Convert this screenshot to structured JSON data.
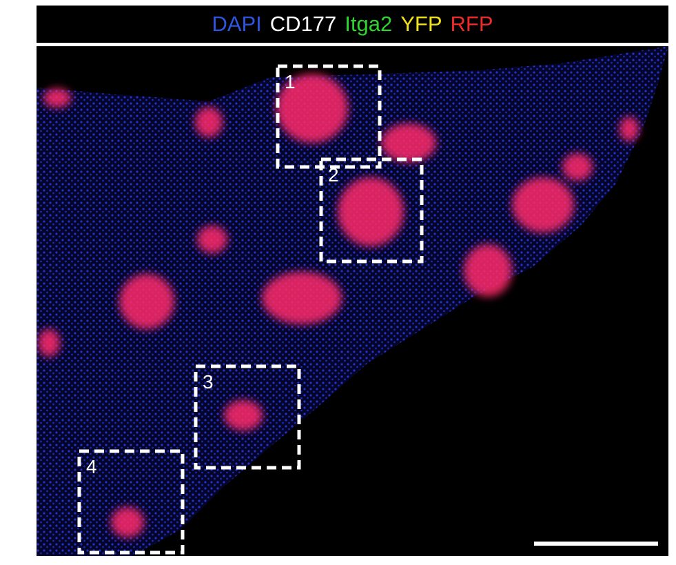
{
  "header": {
    "labels": [
      {
        "text": "DAPI",
        "color": "#2f55e0"
      },
      {
        "text": "CD177",
        "color": "#ffffff"
      },
      {
        "text": "Itga2",
        "color": "#2fd42f"
      },
      {
        "text": "YFP",
        "color": "#f2e21c"
      },
      {
        "text": "RFP",
        "color": "#ee2a2a"
      }
    ]
  },
  "boxes": [
    {
      "label": "1"
    },
    {
      "label": "2"
    },
    {
      "label": "3"
    },
    {
      "label": "4"
    }
  ]
}
